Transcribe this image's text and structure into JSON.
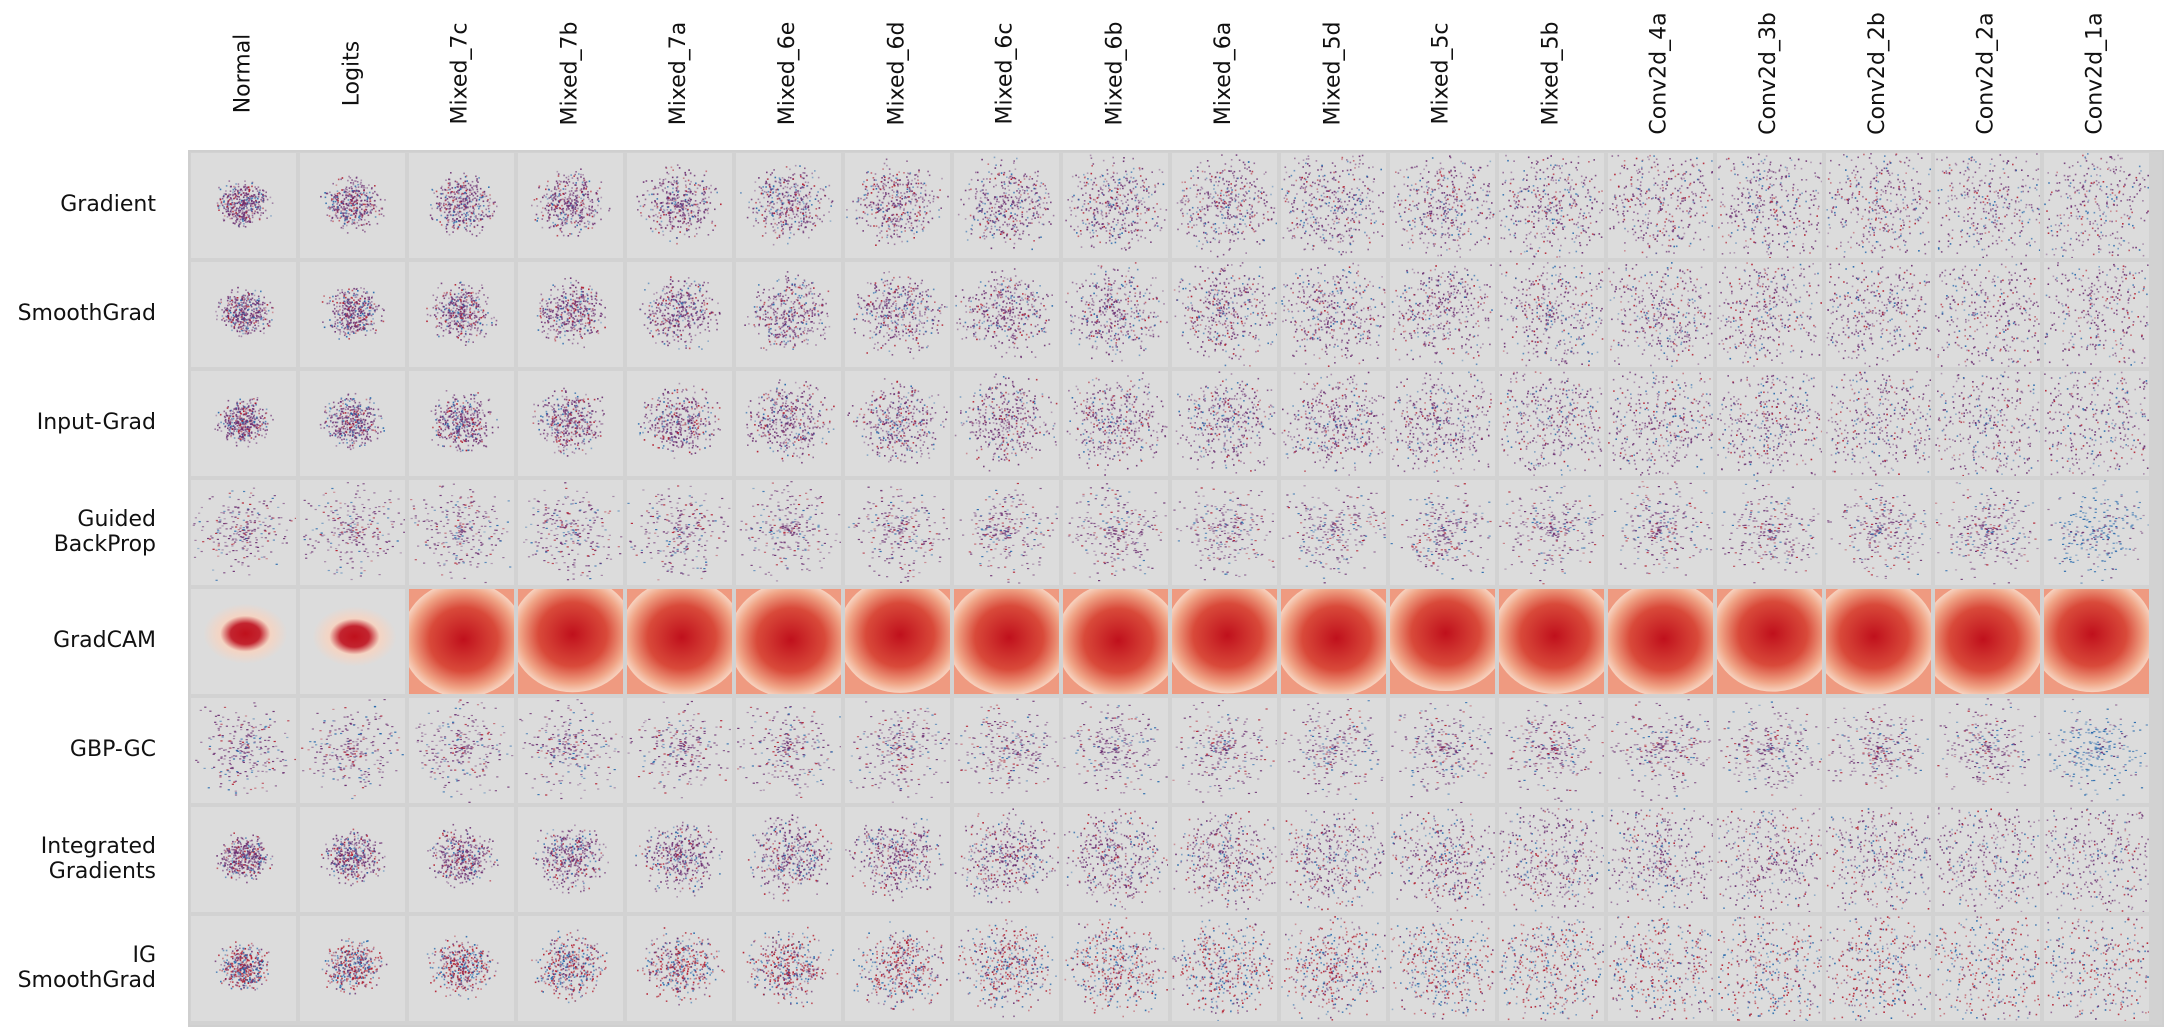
{
  "columns": [
    "Normal",
    "Logits",
    "Mixed_7c",
    "Mixed_7b",
    "Mixed_7a",
    "Mixed_6e",
    "Mixed_6d",
    "Mixed_6c",
    "Mixed_6b",
    "Mixed_6a",
    "Mixed_5d",
    "Mixed_5c",
    "Mixed_5b",
    "Conv2d_4a",
    "Conv2d_3b",
    "Conv2d_2b",
    "Conv2d_2a",
    "Conv2d_1a"
  ],
  "rows": [
    {
      "line1": "Gradient",
      "line2": ""
    },
    {
      "line1": "SmoothGrad",
      "line2": ""
    },
    {
      "line1": "Input-Grad",
      "line2": ""
    },
    {
      "line1": "Guided",
      "line2": "BackProp"
    },
    {
      "line1": "GradCAM",
      "line2": ""
    },
    {
      "line1": "GBP-GC",
      "line2": ""
    },
    {
      "line1": "Integrated",
      "line2": "Gradients"
    },
    {
      "line1": "IG",
      "line2": "SmoothGrad"
    }
  ],
  "colors": {
    "background": "#dcdcdc",
    "positive": "#b2182b",
    "negative": "#2166ac",
    "purple": "#6a2c70",
    "gradcam_low": "#f7d3c0",
    "gradcam_high": "#c0101c"
  }
}
